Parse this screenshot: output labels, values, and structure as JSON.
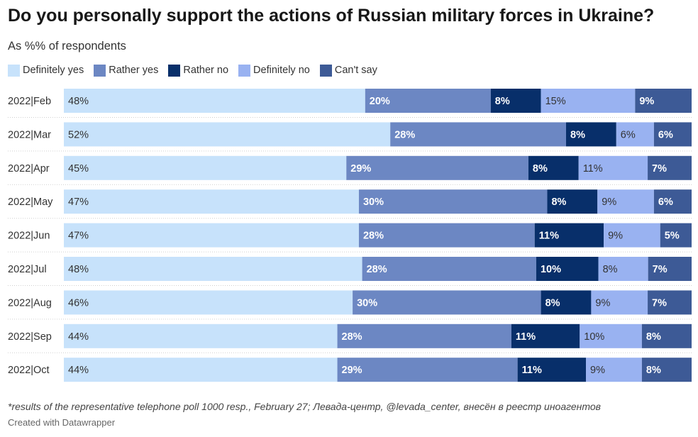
{
  "chart_data": {
    "type": "bar",
    "orientation": "horizontal",
    "stacked": true,
    "title": "Do you personally support the actions of Russian military forces in Ukraine?",
    "subtitle": "As %% of respondents",
    "categories": [
      "2022|Feb",
      "2022|Mar",
      "2022|Apr",
      "2022|May",
      "2022|Jun",
      "2022|Jul",
      "2022|Aug",
      "2022|Sep",
      "2022|Oct"
    ],
    "series": [
      {
        "name": "Definitely yes",
        "color": "#c7e2fb",
        "values": [
          48,
          52,
          45,
          47,
          47,
          48,
          46,
          44,
          44
        ]
      },
      {
        "name": "Rather yes",
        "color": "#6c87c3",
        "values": [
          20,
          28,
          29,
          30,
          28,
          28,
          30,
          28,
          29
        ]
      },
      {
        "name": "Rather no",
        "color": "#082f6a",
        "values": [
          8,
          8,
          8,
          8,
          11,
          10,
          8,
          11,
          11
        ]
      },
      {
        "name": "Definitely no",
        "color": "#99b2f1",
        "values": [
          15,
          6,
          11,
          9,
          9,
          8,
          9,
          10,
          9
        ]
      },
      {
        "name": "Can't say",
        "color": "#3d5a96",
        "values": [
          9,
          6,
          7,
          6,
          5,
          7,
          7,
          8,
          8
        ]
      }
    ],
    "label_suffix": "%",
    "legend_position": "top-left"
  },
  "footnote": "*results of the representative telephone poll 1000 resp., February 27; Левада-центр, @levada_center, внесён в реестр иноагентов",
  "credit": "Created with Datawrapper"
}
